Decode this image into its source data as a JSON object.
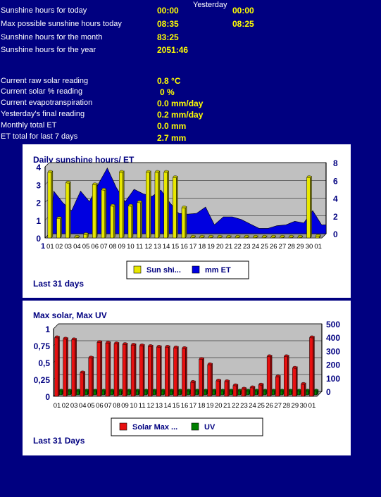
{
  "stats": {
    "yesterday_label": "Yesterday",
    "rows": [
      {
        "label": "Sunshine hours for today",
        "value": "00:00",
        "yesterday": "00:00"
      },
      {
        "label": "Max possible sunshine hours today",
        "value": "08:35",
        "yesterday": "08:25"
      },
      {
        "label": "Sunshine hours for the month",
        "value": "83:25"
      },
      {
        "label": "Sunshine hours for the year",
        "value": "2051:46"
      }
    ],
    "rows2": [
      {
        "label": "Current raw solar reading",
        "value": "0.8 °C"
      },
      {
        "label": "Current solar % reading",
        "value": "0 %"
      },
      {
        "label": "Current evapotranspiration",
        "value": "0.0 mm/day"
      },
      {
        "label": "Yesterday's final reading",
        "value": "0.2 mm/day"
      },
      {
        "label": "Monthly total ET",
        "value": "0.0 mm"
      },
      {
        "label": "ET total for last 7 days",
        "value": "2.7 mm"
      }
    ]
  },
  "colors": {
    "background": "#000080",
    "label_text": "#ffffff",
    "value_text": "#ffff00",
    "title_text": "#000080",
    "sunshine_bar": "#e8e800",
    "et_area": "#0000e0",
    "solar_bar": "#e81010",
    "uv_bar": "#008000",
    "plot_bg": "#c0c0c0"
  },
  "chart_data": [
    {
      "type": "bar",
      "title": "Daily sunshine hours/ ET",
      "footer": "Last 31 days",
      "first_tick": "1",
      "categories": [
        "01",
        "02",
        "03",
        "04",
        "05",
        "06",
        "07",
        "08",
        "09",
        "10",
        "11",
        "12",
        "13",
        "14",
        "15",
        "16",
        "17",
        "18",
        "19",
        "20",
        "21",
        "22",
        "23",
        "24",
        "25",
        "26",
        "27",
        "28",
        "29",
        "30",
        "01"
      ],
      "ylim": [
        0,
        4
      ],
      "yticks": [
        "0",
        "1",
        "2",
        "3",
        "4"
      ],
      "y2lim": [
        0,
        8
      ],
      "y2ticks": [
        "0",
        "2",
        "4",
        "6",
        "8"
      ],
      "series": [
        {
          "name": "Sun shi...",
          "kind": "bar",
          "axis": "left",
          "values": [
            3.7,
            1.1,
            3.1,
            0.05,
            0.2,
            3.0,
            2.7,
            1.8,
            3.7,
            1.8,
            2.0,
            3.7,
            3.7,
            3.7,
            3.4,
            1.7,
            0.05,
            0.05,
            0.05,
            0.05,
            0.05,
            0.05,
            0.05,
            0.05,
            0.05,
            0.05,
            0.05,
            0.05,
            0.05,
            3.4,
            0.1
          ]
        },
        {
          "name": "mm ET",
          "kind": "area",
          "axis": "right",
          "values": [
            4.8,
            3.5,
            2.6,
            4.8,
            3.6,
            5.6,
            7.4,
            5.2,
            3.6,
            5.0,
            4.5,
            4.2,
            4.9,
            3.5,
            2.3,
            2.2,
            2.3,
            3.0,
            1.0,
            1.9,
            1.9,
            1.6,
            1.1,
            0.6,
            0.6,
            0.9,
            1.0,
            1.4,
            1.2,
            2.6,
            1.0
          ]
        }
      ]
    },
    {
      "type": "bar",
      "title": "Max solar, Max UV",
      "footer": "Last 31 Days",
      "categories": [
        "01",
        "02",
        "03",
        "04",
        "05",
        "06",
        "07",
        "08",
        "09",
        "10",
        "11",
        "12",
        "13",
        "14",
        "15",
        "16",
        "17",
        "18",
        "19",
        "20",
        "21",
        "22",
        "23",
        "24",
        "25",
        "26",
        "27",
        "28",
        "29",
        "30",
        "01"
      ],
      "ylim": [
        0,
        1
      ],
      "yticks": [
        "0",
        "0,25",
        "0,5",
        "0,75",
        "1"
      ],
      "y2lim": [
        0,
        500
      ],
      "y2ticks": [
        "0",
        "100",
        "200",
        "300",
        "400",
        "500"
      ],
      "series": [
        {
          "name": "Solar Max ...",
          "kind": "bar",
          "axis": "left",
          "values": [
            0.87,
            0.85,
            0.84,
            0.35,
            0.57,
            0.8,
            0.79,
            0.78,
            0.77,
            0.76,
            0.75,
            0.74,
            0.73,
            0.73,
            0.72,
            0.71,
            0.21,
            0.55,
            0.47,
            0.23,
            0.22,
            0.16,
            0.11,
            0.13,
            0.17,
            0.59,
            0.29,
            0.59,
            0.42,
            0.18,
            0.87
          ]
        },
        {
          "name": "UV",
          "kind": "bar",
          "axis": "right",
          "values": [
            30,
            30,
            30,
            30,
            30,
            30,
            30,
            30,
            30,
            30,
            30,
            30,
            30,
            30,
            30,
            30,
            30,
            30,
            30,
            30,
            30,
            30,
            30,
            30,
            30,
            30,
            30,
            30,
            30,
            30,
            30
          ]
        }
      ]
    }
  ]
}
